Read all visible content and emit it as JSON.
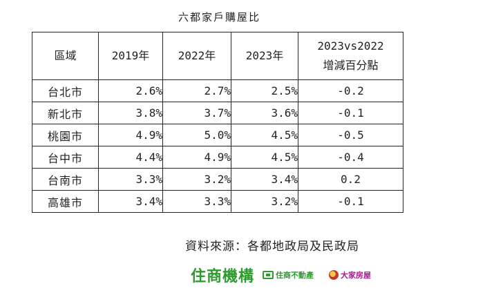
{
  "title": "六都家戶購屋比",
  "table": {
    "headers": {
      "region": "區域",
      "y2019": "2019年",
      "y2022": "2022年",
      "y2023": "2023年",
      "diff_line1": "2023vs2022",
      "diff_line2": "增減百分點"
    },
    "rows": [
      {
        "region": "台北市",
        "y2019": "2.6%",
        "y2022": "2.7%",
        "y2023": "2.5%",
        "diff": "-0.2"
      },
      {
        "region": "新北市",
        "y2019": "3.8%",
        "y2022": "3.7%",
        "y2023": "3.6%",
        "diff": "-0.1"
      },
      {
        "region": "桃園市",
        "y2019": "4.9%",
        "y2022": "5.0%",
        "y2023": "4.5%",
        "diff": "-0.5"
      },
      {
        "region": "台中市",
        "y2019": "4.4%",
        "y2022": "4.9%",
        "y2023": "4.5%",
        "diff": "-0.4"
      },
      {
        "region": "台南市",
        "y2019": "3.3%",
        "y2022": "3.2%",
        "y2023": "3.4%",
        "diff": "0.2"
      },
      {
        "region": "高雄市",
        "y2019": "3.4%",
        "y2022": "3.3%",
        "y2023": "3.2%",
        "diff": "-0.1"
      }
    ]
  },
  "source": "資料來源：各都地政局及民政局",
  "logos": {
    "main": "住商機構",
    "brand_b": "住商不動產",
    "brand_c": "大家房屋"
  },
  "colors": {
    "brand_green": "#2e9b2e",
    "brand_purple": "#a0208a"
  }
}
